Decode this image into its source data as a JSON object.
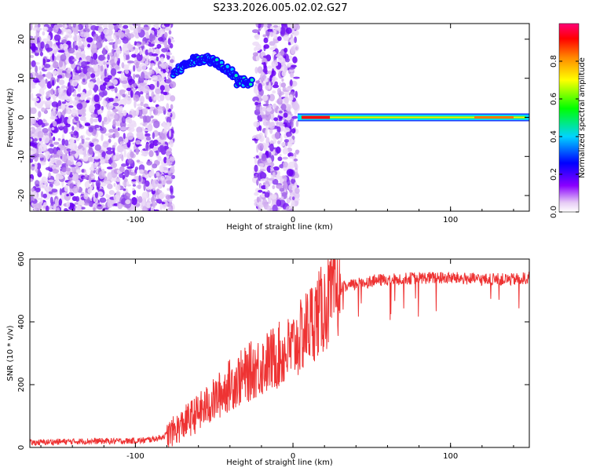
{
  "title": "S233.2026.005.02.02.G27",
  "chart_data": [
    {
      "type": "heatmap",
      "xlabel": "Height of straight line (km)",
      "ylabel": "Frequency (Hz)",
      "xlim": [
        -167,
        150
      ],
      "ylim": [
        -24,
        24
      ],
      "xticks": [
        -100,
        0,
        100
      ],
      "yticks": [
        -20,
        -10,
        0,
        10,
        20
      ],
      "colorbar": {
        "label": "Normalized spectral amplitude",
        "range": [
          0,
          1
        ],
        "ticks": [
          0.0,
          0.2,
          0.4,
          0.6,
          0.8
        ],
        "colors": [
          "#e6cbf5",
          "#8a00ff",
          "#0000ff",
          "#00d4ff",
          "#00ff00",
          "#ffff00",
          "#ff8800",
          "#ff0000",
          "#ff00a0"
        ]
      },
      "regions": [
        {
          "x": [
            -167,
            -76
          ],
          "y": [
            -24,
            24
          ],
          "level": "noise"
        },
        {
          "x": [
            -76,
            -26
          ],
          "y": [
            9,
            16
          ],
          "level": "signal-arc"
        },
        {
          "x": [
            -24,
            3
          ],
          "y": [
            -24,
            24
          ],
          "level": "noise"
        },
        {
          "x": [
            3,
            150
          ],
          "y": [
            -1,
            1
          ],
          "level": "signal-band"
        }
      ]
    },
    {
      "type": "line",
      "xlabel": "Height of straight line (km)",
      "ylabel": "SNR (10 * v/v)",
      "xlim": [
        -167,
        150
      ],
      "ylim": [
        0,
        600
      ],
      "xticks": [
        -100,
        0,
        100
      ],
      "yticks": [
        0,
        200,
        400,
        600
      ],
      "color": "#ee3333",
      "series": [
        {
          "x": [
            -167,
            -150,
            -130,
            -110,
            -95,
            -85,
            -78,
            -72,
            -66,
            -60,
            -55,
            -50,
            -45,
            -40,
            -35,
            -30,
            -25,
            -20,
            -15,
            -10,
            -5,
            0,
            5,
            10,
            15,
            20,
            25,
            30,
            40,
            50,
            60,
            80,
            100,
            120,
            140,
            150
          ],
          "y": [
            15,
            18,
            20,
            20,
            22,
            30,
            45,
            65,
            90,
            110,
            130,
            150,
            175,
            200,
            215,
            230,
            250,
            260,
            275,
            290,
            300,
            320,
            350,
            390,
            420,
            445,
            480,
            505,
            520,
            530,
            535,
            540,
            540,
            535,
            535,
            540
          ]
        }
      ]
    }
  ]
}
